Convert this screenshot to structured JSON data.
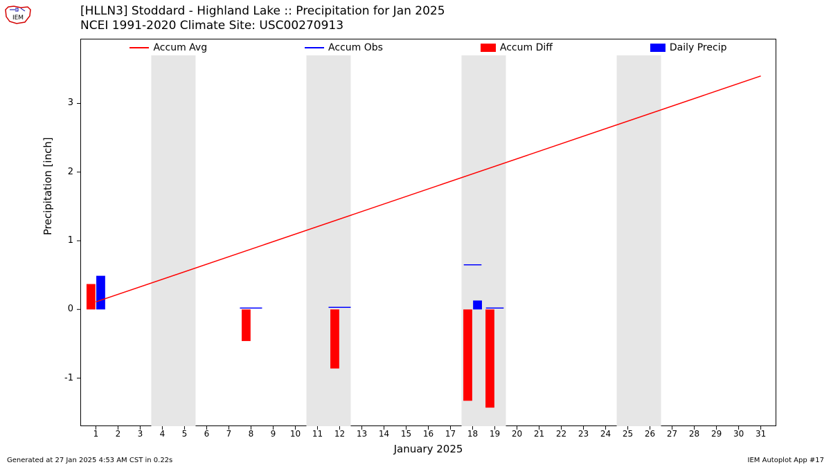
{
  "title_line1": "[HLLN3] Stoddard - Highland Lake :: Precipitation for Jan 2025",
  "title_line2": "NCEI 1991-2020 Climate Site: USC00270913",
  "ylabel": "Precipitation [inch]",
  "xlabel": "January 2025",
  "footer_left": "Generated at 27 Jan 2025 4:53 AM CST in 0.22s",
  "footer_right": "IEM Autoplot App #17",
  "legend": [
    {
      "type": "line",
      "color": "#ff0000",
      "label": "Accum Avg"
    },
    {
      "type": "line",
      "color": "#0000ff",
      "label": "Accum Obs"
    },
    {
      "type": "box",
      "color": "#ff0000",
      "label": "Accum Diff"
    },
    {
      "type": "box",
      "color": "#0000ff",
      "label": "Daily Precip"
    }
  ],
  "chart": {
    "type": "bar+line",
    "background_color": "#ffffff",
    "axis_color": "#000000",
    "grid": false,
    "x": {
      "min": 0.3,
      "max": 31.7,
      "ticks": [
        1,
        2,
        3,
        4,
        5,
        6,
        7,
        8,
        9,
        10,
        11,
        12,
        13,
        14,
        15,
        16,
        17,
        18,
        19,
        20,
        21,
        22,
        23,
        24,
        25,
        26,
        27,
        28,
        29,
        30,
        31
      ]
    },
    "y": {
      "min": -1.7,
      "max": 3.7,
      "ticks": [
        -1,
        0,
        1,
        2,
        3
      ]
    },
    "weekend_bands": {
      "color": "#e6e6e6",
      "ranges": [
        [
          3.5,
          5.5
        ],
        [
          10.5,
          12.5
        ],
        [
          17.5,
          19.5
        ],
        [
          24.5,
          26.5
        ]
      ]
    },
    "accum_avg_line": {
      "color": "#ff0000",
      "width": 1.5,
      "points": [
        [
          1,
          0.11
        ],
        [
          31,
          3.4
        ]
      ]
    },
    "accum_obs_segments": {
      "color": "#0000ff",
      "width": 1.5,
      "segments": [
        [
          [
            7.5,
            0.02
          ],
          [
            8.5,
            0.02
          ]
        ],
        [
          [
            11.5,
            0.03
          ],
          [
            12.5,
            0.03
          ]
        ],
        [
          [
            17.6,
            0.65
          ],
          [
            18.4,
            0.65
          ]
        ],
        [
          [
            18.6,
            0.02
          ],
          [
            19.4,
            0.02
          ]
        ]
      ]
    },
    "bars_red": {
      "color": "#ff0000",
      "width": 0.4,
      "items": [
        {
          "x": 0.78,
          "y": 0.37
        },
        {
          "x": 7.78,
          "y": -0.46
        },
        {
          "x": 11.78,
          "y": -0.86
        },
        {
          "x": 17.78,
          "y": -1.33
        },
        {
          "x": 18.78,
          "y": -1.43
        }
      ]
    },
    "bars_blue": {
      "color": "#0000ff",
      "width": 0.4,
      "items": [
        {
          "x": 1.22,
          "y": 0.49
        },
        {
          "x": 18.22,
          "y": 0.13
        }
      ]
    }
  },
  "logo_colors": {
    "outline": "#d40000",
    "accent": "#0000a0",
    "text": "#000000"
  }
}
